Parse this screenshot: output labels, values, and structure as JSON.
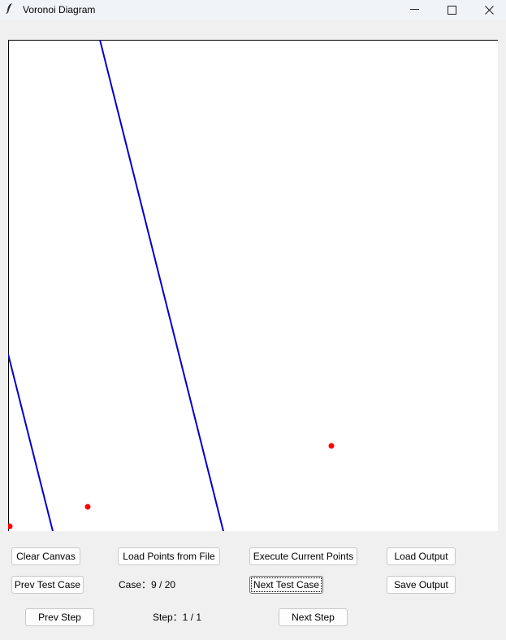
{
  "window": {
    "title": "Voronoi Diagram",
    "icon": "feather-icon",
    "controls": {
      "minimize": "—",
      "maximize": "☐",
      "close": "✕"
    }
  },
  "colors": {
    "edge": "#0000cc",
    "point": "#ff0000",
    "canvas": "#ffffff"
  },
  "buttons": {
    "clear_canvas": "Clear Canvas",
    "load_points": "Load Points from File",
    "execute": "Execute Current Points",
    "load_output": "Load Output",
    "prev_test_case": "Prev Test Case",
    "next_test_case": "Next Test Case",
    "save_output": "Save Output",
    "prev_step": "Prev Step",
    "next_step": "Next Step"
  },
  "labels": {
    "case": "Case：9 / 20",
    "step": "Step：1 / 1"
  }
}
